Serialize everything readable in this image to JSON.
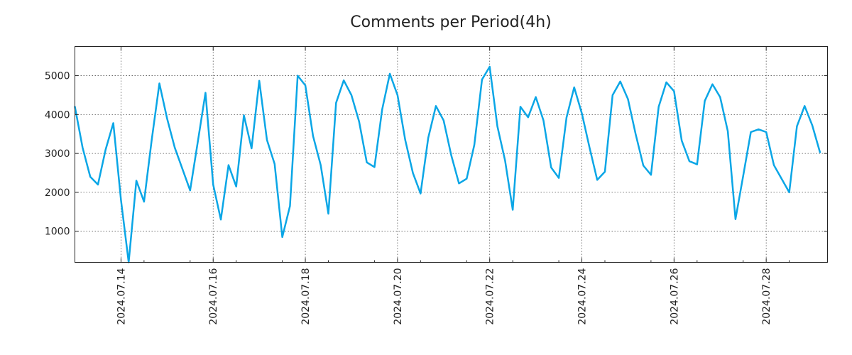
{
  "chart_data": {
    "type": "line",
    "title": "Comments per Period(4h)",
    "xlabel": "",
    "ylabel": "",
    "period_hours": 4,
    "x_start": "2024.07.13 00:00",
    "xlim_days": [
      0,
      16.33
    ],
    "ylim": [
      200,
      5750
    ],
    "yticks": [
      1000,
      2000,
      3000,
      4000,
      5000
    ],
    "xticks": [
      {
        "day": 1,
        "label": "2024.07.14"
      },
      {
        "day": 3,
        "label": "2024.07.16"
      },
      {
        "day": 5,
        "label": "2024.07.18"
      },
      {
        "day": 7,
        "label": "2024.07.20"
      },
      {
        "day": 9,
        "label": "2024.07.22"
      },
      {
        "day": 11,
        "label": "2024.07.24"
      },
      {
        "day": 13,
        "label": "2024.07.26"
      },
      {
        "day": 15,
        "label": "2024.07.28"
      }
    ],
    "x_minor_days": [
      1.5,
      2.5,
      3.5,
      4.5,
      5.5,
      6.5,
      7.5,
      8.5,
      9.5,
      10.5,
      11.5,
      12.5,
      13.5,
      14.5,
      15.5
    ],
    "grid": true,
    "legend": "none",
    "color": "#0aa6e6",
    "series": [
      {
        "name": "comments",
        "values": [
          4200,
          3150,
          2400,
          2200,
          3100,
          3780,
          1800,
          200,
          2300,
          1760,
          3350,
          4800,
          3900,
          3150,
          2600,
          2050,
          3300,
          4560,
          2200,
          1300,
          2700,
          2150,
          3980,
          3130,
          4870,
          3350,
          2730,
          850,
          1650,
          5000,
          4750,
          3450,
          2700,
          1450,
          4300,
          4880,
          4500,
          3820,
          2770,
          2650,
          4130,
          5050,
          4500,
          3350,
          2500,
          1970,
          3400,
          4220,
          3850,
          2950,
          2230,
          2350,
          3220,
          4900,
          5230,
          3700,
          2820,
          1550,
          4200,
          3930,
          4450,
          3850,
          2640,
          2370,
          3920,
          4700,
          4030,
          3150,
          2320,
          2530,
          4500,
          4850,
          4400,
          3500,
          2690,
          2450,
          4200,
          4830,
          4600,
          3330,
          2800,
          2720,
          4350,
          4780,
          4450,
          3570,
          1310,
          2420,
          3550,
          3620,
          3550,
          2700,
          2350,
          2000,
          3700,
          4220,
          3720,
          3030
        ]
      }
    ]
  }
}
